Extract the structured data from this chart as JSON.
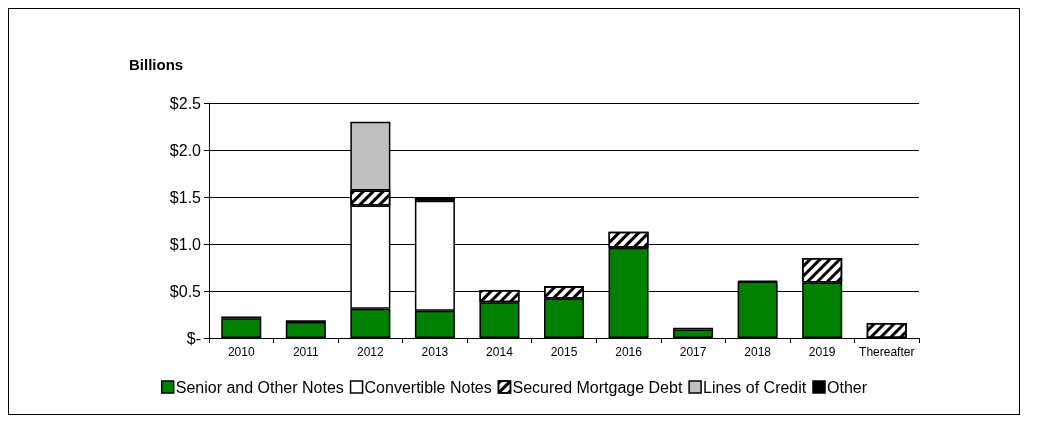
{
  "chart_data": {
    "type": "bar",
    "ylabel": "Billions",
    "stacked": true,
    "grid": "y",
    "legend": "bottom",
    "categories": [
      "2010",
      "2011",
      "2012",
      "2013",
      "2014",
      "2015",
      "2016",
      "2017",
      "2018",
      "2019",
      "Thereafter"
    ],
    "series": [
      {
        "name": "Senior and Other Notes",
        "color": "#008000",
        "values": [
          0.21,
          0.17,
          0.31,
          0.29,
          0.38,
          0.42,
          0.96,
          0.09,
          0.6,
          0.59,
          null
        ]
      },
      {
        "name": "Convertible Notes",
        "color": "#ffffff",
        "values": [
          null,
          null,
          1.1,
          1.17,
          null,
          null,
          null,
          null,
          null,
          null,
          null
        ]
      },
      {
        "name": "Secured Mortgage Debt",
        "color": "#ffffff",
        "values": [
          null,
          null,
          0.16,
          0.03,
          0.13,
          0.13,
          0.17,
          null,
          null,
          0.26,
          0.16
        ]
      },
      {
        "name": "Lines of Credit",
        "color": "#c0c0c0",
        "values": [
          null,
          null,
          0.73,
          null,
          null,
          null,
          null,
          null,
          null,
          null,
          null
        ]
      },
      {
        "name": "Other",
        "color": "#000000",
        "values": [
          0.02,
          0.02,
          null,
          null,
          null,
          null,
          null,
          0.02,
          0.01,
          null,
          null
        ]
      }
    ],
    "ylim": [
      0,
      2.5
    ],
    "yticks": [
      {
        "value": 0,
        "label": "$-"
      },
      {
        "value": 0.5,
        "label": "$0.5"
      },
      {
        "value": 1,
        "label": "$1.0"
      },
      {
        "value": 1.5,
        "label": "$1.5"
      },
      {
        "value": 2,
        "label": "$2.0"
      },
      {
        "value": 2.5,
        "label": "$2.5"
      }
    ]
  }
}
